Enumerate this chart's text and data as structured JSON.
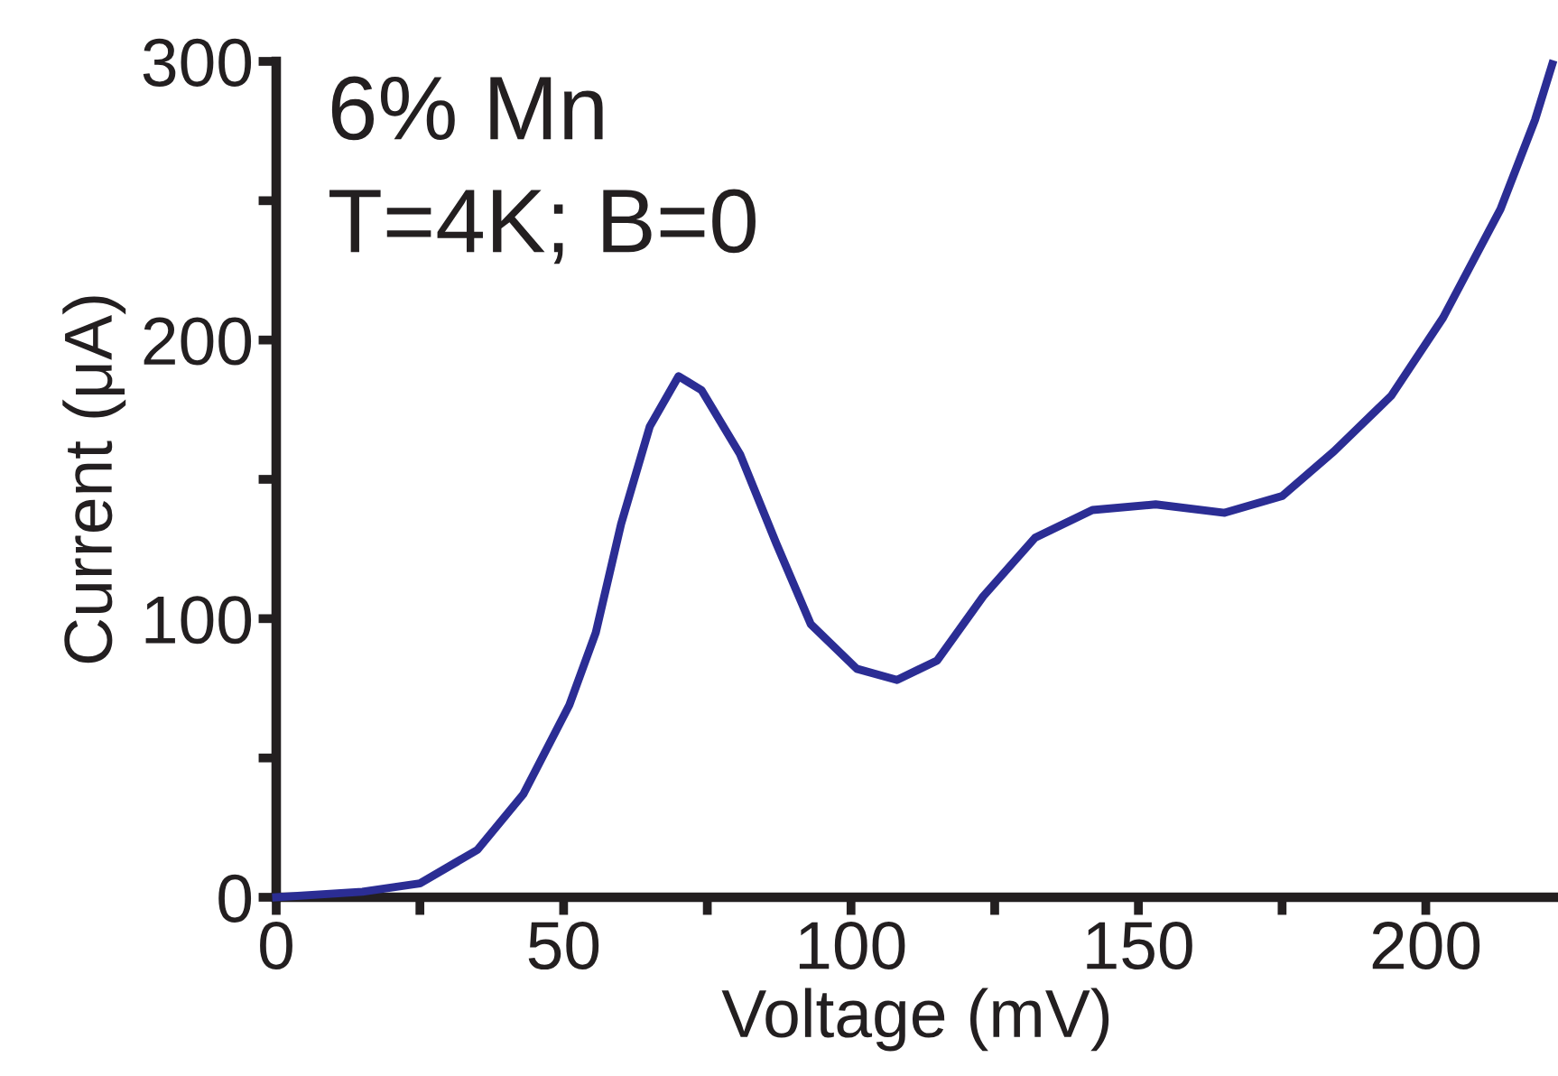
{
  "chart_data": {
    "type": "line",
    "xlabel": "Voltage (mV)",
    "ylabel": "Current (μA)",
    "annotations": [
      "6% Mn",
      "T=4K; B=0"
    ],
    "x": [
      0,
      15,
      25,
      35,
      43,
      51,
      55.6,
      60,
      65,
      70,
      74,
      80.7,
      87,
      93,
      101,
      108,
      115,
      123,
      132,
      142,
      153,
      165,
      175,
      184,
      194,
      203,
      213,
      219,
      222
    ],
    "series": [
      {
        "color": "#2b2d94",
        "values": [
          0,
          2,
          5,
          17,
          37,
          69,
          95,
          134,
          169,
          187,
          182,
          159,
          127,
          98,
          82,
          78,
          85,
          108,
          129,
          139,
          141,
          138,
          144,
          160,
          180,
          208,
          247,
          279,
          299
        ]
      }
    ],
    "xlim": [
      0,
      223
    ],
    "ylim": [
      0,
      300
    ],
    "xticks": [
      0,
      {
        "value": 25,
        "label": null
      },
      50,
      {
        "value": 75,
        "label": null
      },
      100,
      {
        "value": 125,
        "label": null
      },
      150,
      {
        "value": 175,
        "label": null
      },
      200
    ],
    "yticks": [
      0,
      {
        "value": 50,
        "label": null
      },
      100,
      {
        "value": 150,
        "label": null
      },
      200,
      {
        "value": 250,
        "label": null
      },
      300
    ],
    "grid": false,
    "legend": false,
    "marker": "none",
    "line_style": "solid"
  }
}
